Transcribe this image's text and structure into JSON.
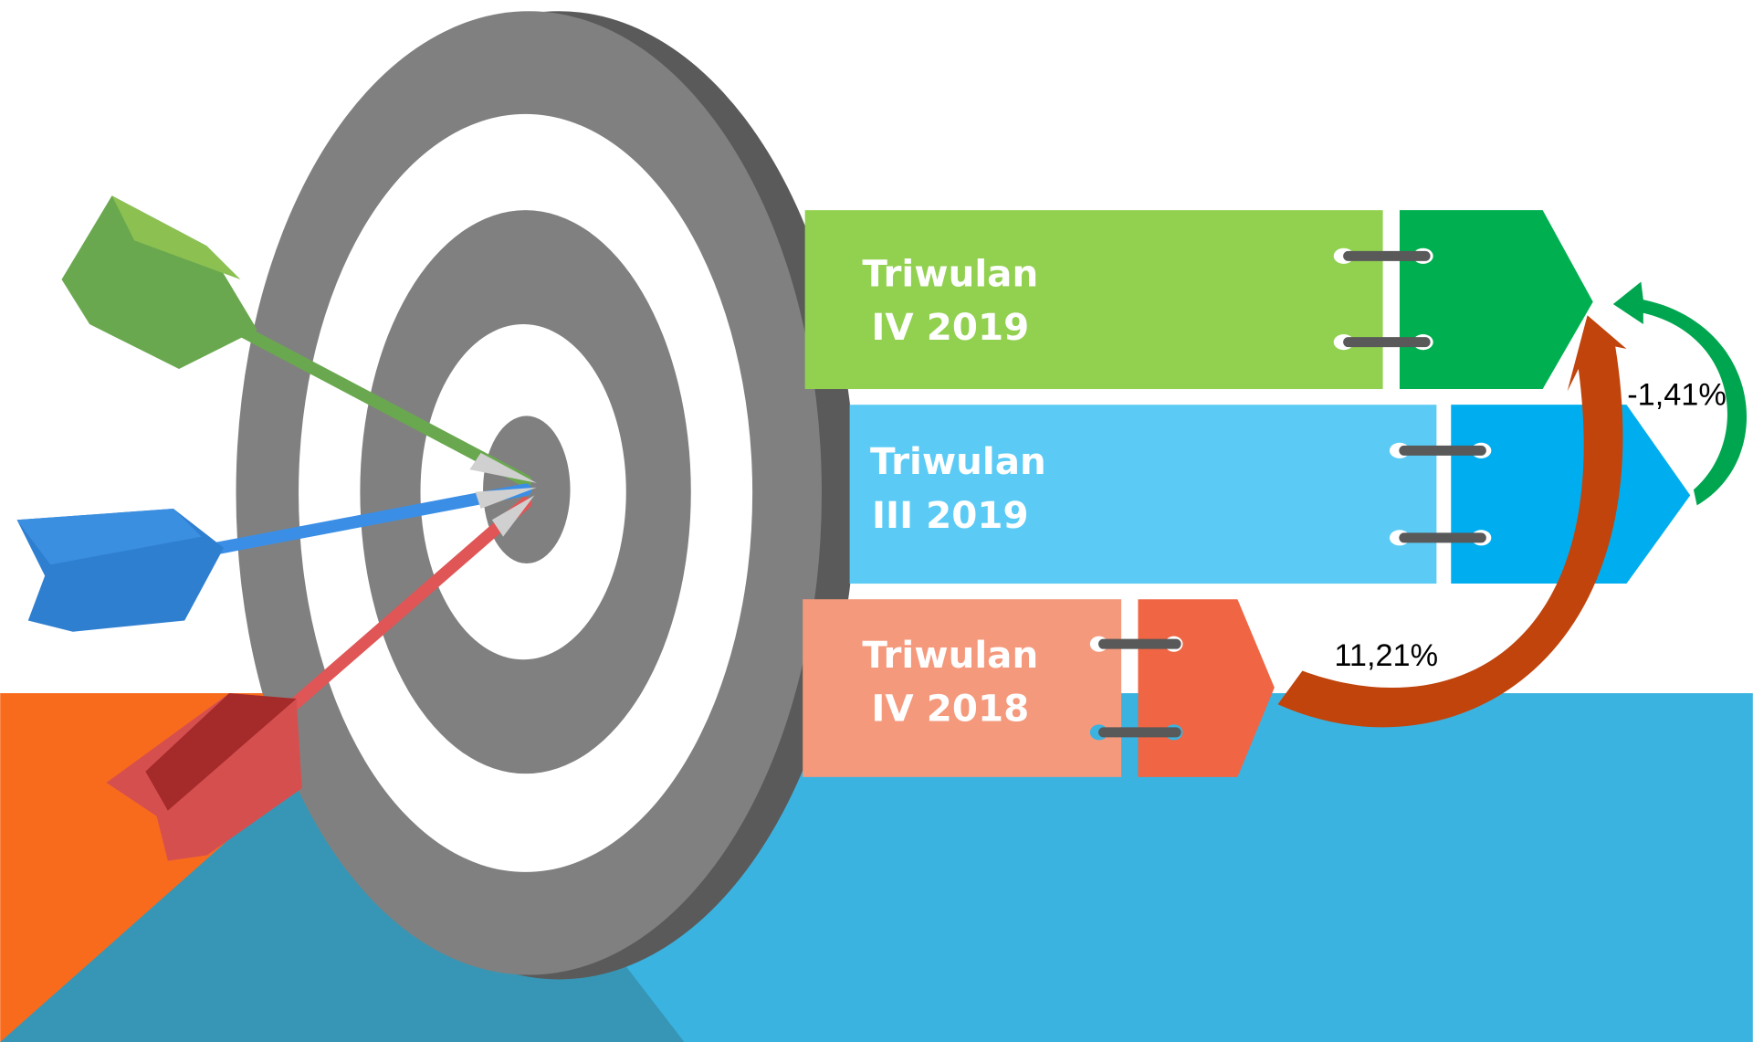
{
  "periods": [
    [
      "Triwulan",
      "IV 2019"
    ],
    [
      "Triwulan",
      "III 2019"
    ],
    [
      "Triwulan",
      "IV 2018"
    ]
  ],
  "changes": [
    "-1,41%",
    "11,21%"
  ]
}
